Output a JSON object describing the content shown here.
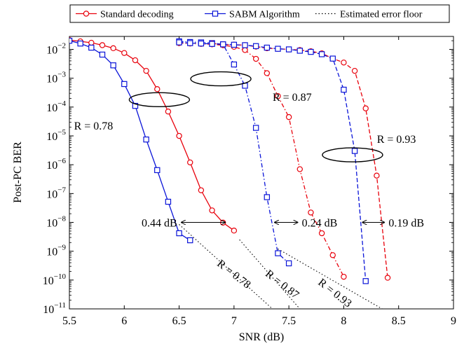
{
  "chart_data": {
    "type": "line",
    "title": "",
    "xlabel": "SNR (dB)",
    "ylabel": "Post-PC BER",
    "xlim": [
      5.5,
      9
    ],
    "ylim_exp": [
      -11,
      -1.55
    ],
    "y_scale": "log",
    "x_ticks": [
      5.5,
      6,
      6.5,
      7,
      7.5,
      8,
      8.5,
      9
    ],
    "x_tick_labels": [
      "5.5",
      "6",
      "6.5",
      "7",
      "7.5",
      "8",
      "8.5",
      "9"
    ],
    "y_tick_exponents": [
      -2,
      -3,
      -4,
      -5,
      -6,
      -7,
      -8,
      -9,
      -10,
      -11
    ],
    "y_tick_base": "10",
    "grid": false,
    "legend_position": "top",
    "legend": [
      {
        "label": "Standard decoding",
        "color": "#e8000b",
        "marker": "circle",
        "dash": "solid"
      },
      {
        "label": "SABM Algorithm",
        "color": "#0a14d8",
        "marker": "square",
        "dash": "solid"
      },
      {
        "label": "Estimated error floor",
        "color": "#000000",
        "marker": "none",
        "dash": "dotted"
      }
    ],
    "series": [
      {
        "group": "standard",
        "rate": "0.78",
        "color": "#e8000b",
        "marker": "circle",
        "dash": "solid",
        "points": [
          [
            5.5,
            0.021
          ],
          [
            5.6,
            0.019
          ],
          [
            5.7,
            0.017
          ],
          [
            5.8,
            0.014
          ],
          [
            5.9,
            0.011
          ],
          [
            6.0,
            0.0075
          ],
          [
            6.1,
            0.0042
          ],
          [
            6.2,
            0.0018
          ],
          [
            6.3,
            0.00042
          ],
          [
            6.4,
            7e-05
          ],
          [
            6.5,
            1e-05
          ],
          [
            6.6,
            1.2e-06
          ],
          [
            6.7,
            1.3e-07
          ],
          [
            6.8,
            2.6e-08
          ],
          [
            6.9,
            9.8e-09
          ],
          [
            7.0,
            5.2e-09
          ]
        ]
      },
      {
        "group": "sabm",
        "rate": "0.78",
        "color": "#0a14d8",
        "marker": "square",
        "dash": "solid",
        "points": [
          [
            5.5,
            0.02
          ],
          [
            5.6,
            0.016
          ],
          [
            5.7,
            0.0115
          ],
          [
            5.8,
            0.0066
          ],
          [
            5.9,
            0.0028
          ],
          [
            6.0,
            0.00063
          ],
          [
            6.1,
            0.00011
          ],
          [
            6.2,
            7.5e-06
          ],
          [
            6.3,
            6.5e-07
          ],
          [
            6.4,
            5.2e-08
          ],
          [
            6.5,
            4.2e-09
          ],
          [
            6.6,
            2.4e-09
          ]
        ]
      },
      {
        "group": "standard",
        "rate": "0.87",
        "color": "#e8000b",
        "marker": "circle",
        "dash": "dashdot",
        "points": [
          [
            6.5,
            0.0165
          ],
          [
            6.6,
            0.016
          ],
          [
            6.7,
            0.0155
          ],
          [
            6.8,
            0.015
          ],
          [
            6.9,
            0.014
          ],
          [
            7.0,
            0.0123
          ],
          [
            7.1,
            0.0095
          ],
          [
            7.2,
            0.0047
          ],
          [
            7.3,
            0.0015
          ],
          [
            7.4,
            0.00024
          ],
          [
            7.5,
            4.5e-05
          ],
          [
            7.6,
            7e-07
          ],
          [
            7.7,
            2.2e-08
          ],
          [
            7.8,
            4.2e-09
          ],
          [
            7.9,
            7.3e-10
          ],
          [
            8.0,
            1.3e-10
          ]
        ]
      },
      {
        "group": "sabm",
        "rate": "0.87",
        "color": "#0a14d8",
        "marker": "square",
        "dash": "dashdot",
        "points": [
          [
            6.5,
            0.019
          ],
          [
            6.6,
            0.018
          ],
          [
            6.7,
            0.0175
          ],
          [
            6.8,
            0.0165
          ],
          [
            6.9,
            0.015
          ],
          [
            7.0,
            0.003
          ],
          [
            7.1,
            0.00055
          ],
          [
            7.2,
            1.9e-05
          ],
          [
            7.3,
            7.5e-08
          ],
          [
            7.4,
            8.5e-10
          ],
          [
            7.5,
            3.8e-10
          ]
        ]
      },
      {
        "group": "standard",
        "rate": "0.93",
        "color": "#e8000b",
        "marker": "circle",
        "dash": "dashed",
        "points": [
          [
            6.8,
            0.016
          ],
          [
            6.9,
            0.015
          ],
          [
            7.0,
            0.0145
          ],
          [
            7.1,
            0.014
          ],
          [
            7.2,
            0.0125
          ],
          [
            7.3,
            0.011
          ],
          [
            7.4,
            0.0105
          ],
          [
            7.5,
            0.01
          ],
          [
            7.6,
            0.0095
          ],
          [
            7.7,
            0.0086
          ],
          [
            7.8,
            0.0073
          ],
          [
            7.9,
            0.0048
          ],
          [
            8.0,
            0.0035
          ],
          [
            8.1,
            0.0018
          ],
          [
            8.2,
            9e-05
          ],
          [
            8.3,
            4.2e-07
          ],
          [
            8.4,
            1.2e-10
          ]
        ]
      },
      {
        "group": "sabm",
        "rate": "0.93",
        "color": "#0a14d8",
        "marker": "square",
        "dash": "dashed",
        "points": [
          [
            6.5,
            0.0175
          ],
          [
            6.6,
            0.0165
          ],
          [
            6.7,
            0.016
          ],
          [
            6.8,
            0.0155
          ],
          [
            6.9,
            0.015
          ],
          [
            7.0,
            0.0145
          ],
          [
            7.1,
            0.014
          ],
          [
            7.2,
            0.013
          ],
          [
            7.3,
            0.0115
          ],
          [
            7.4,
            0.0105
          ],
          [
            7.5,
            0.01
          ],
          [
            7.6,
            0.009
          ],
          [
            7.7,
            0.0082
          ],
          [
            7.8,
            0.0068
          ],
          [
            7.9,
            0.0048
          ],
          [
            8.0,
            0.0004
          ],
          [
            8.1,
            3e-06
          ],
          [
            8.2,
            9.2e-11
          ]
        ]
      }
    ],
    "floors": [
      {
        "label": "R = 0.78",
        "points": [
          [
            6.5,
            8.5e-09
          ],
          [
            7.35,
            1e-11
          ]
        ]
      },
      {
        "label": "R = 0.87",
        "points": [
          [
            7.05,
            2.5e-09
          ],
          [
            7.6,
            1e-11
          ]
        ]
      },
      {
        "label": "R = 0.93",
        "points": [
          [
            7.4,
            1.2e-09
          ],
          [
            8.35,
            1e-11
          ]
        ]
      }
    ],
    "floor_labels": [
      {
        "text": "R = 0.78",
        "x": 6.98,
        "y": 1.8e-10
      },
      {
        "text": "R = 0.87",
        "x": 7.42,
        "y": 8e-11
      },
      {
        "text": "R = 0.93",
        "x": 7.9,
        "y": 4e-11
      }
    ],
    "ellipses": [
      {
        "x": 6.32,
        "y": 0.00018
      },
      {
        "x": 6.88,
        "y": 0.00095
      },
      {
        "x": 8.08,
        "y": 2.2e-06
      }
    ],
    "rate_labels": [
      {
        "text": "R = 0.78",
        "x": 5.72,
        "y": 2.3e-05
      },
      {
        "text": "R = 0.87",
        "x": 7.53,
        "y": 0.00023
      },
      {
        "text": "R = 0.93",
        "x": 8.48,
        "y": 8e-06
      }
    ],
    "gap_annotations": [
      {
        "text": "0.44 dB",
        "x1": 6.52,
        "x2": 6.92,
        "y": 1e-08
      },
      {
        "text": "0.24 dB",
        "x1": 7.37,
        "x2": 7.58,
        "y": 1e-08
      },
      {
        "text": "0.19 dB",
        "x1": 8.17,
        "x2": 8.37,
        "y": 1e-08
      }
    ]
  }
}
